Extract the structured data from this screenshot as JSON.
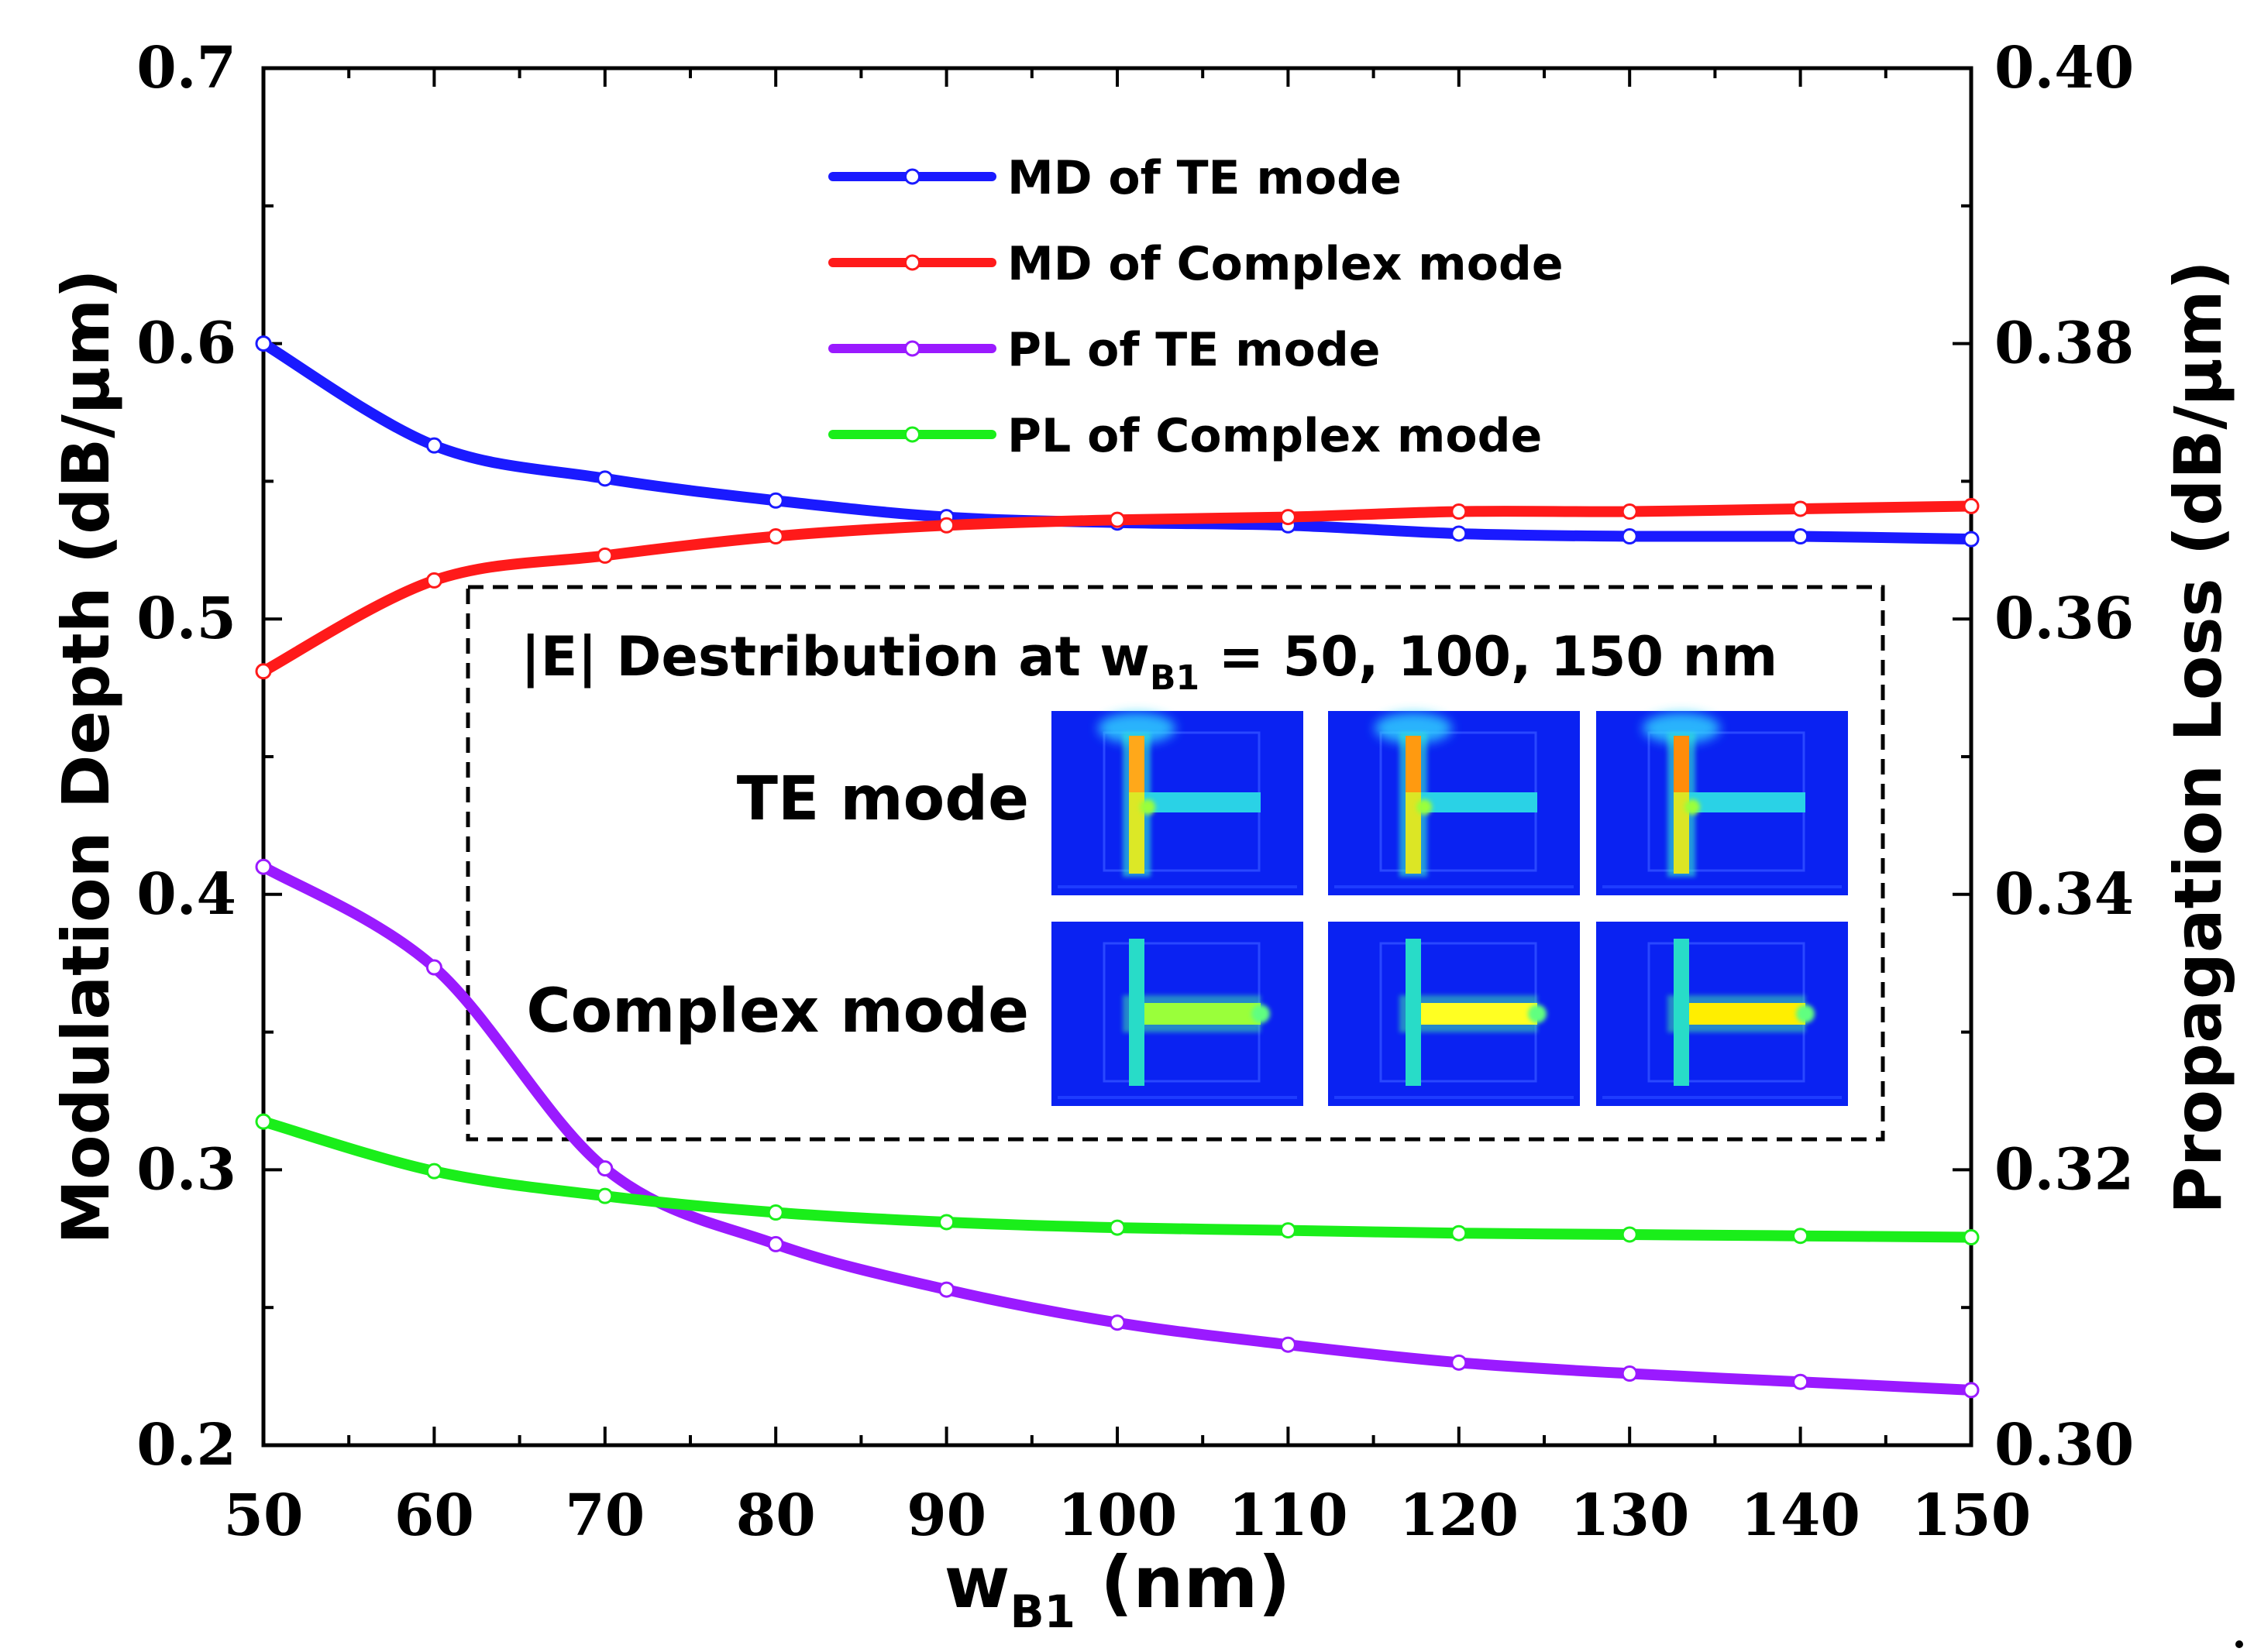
{
  "chart_data": {
    "type": "line",
    "xlabel": "w",
    "xlabel_sub": "B1",
    "xlabel_unit": " (nm)",
    "ylabel_left": "Modulation Depth (dB/μm)",
    "ylabel_right": "Propagation Loss (dB/μm)",
    "xlim": [
      50,
      150
    ],
    "ylim_left": [
      0.2,
      0.7
    ],
    "ylim_right": [
      0.3,
      0.4
    ],
    "x_ticks": [
      "50",
      "60",
      "70",
      "80",
      "90",
      "100",
      "110",
      "120",
      "130",
      "140",
      "150"
    ],
    "y_left_ticks": [
      "0.2",
      "0.3",
      "0.4",
      "0.5",
      "0.6",
      "0.7"
    ],
    "y_right_ticks": [
      "0.30",
      "0.32",
      "0.34",
      "0.36",
      "0.38",
      "0.40"
    ],
    "x": [
      50,
      60,
      70,
      80,
      90,
      100,
      110,
      120,
      130,
      140,
      150
    ],
    "series": [
      {
        "name": "MD of TE mode",
        "axis": "left",
        "color": "#1a1aff",
        "values": [
          0.6,
          0.563,
          0.551,
          0.543,
          0.537,
          0.535,
          0.534,
          0.531,
          0.53,
          0.53,
          0.529
        ]
      },
      {
        "name": "MD of Complex mode",
        "axis": "left",
        "color": "#ff1a1a",
        "values": [
          0.481,
          0.514,
          0.523,
          0.53,
          0.534,
          0.536,
          0.537,
          0.539,
          0.539,
          0.54,
          0.541
        ]
      },
      {
        "name": "PL of TE mode",
        "axis": "right",
        "color": "#9a1aff",
        "values": [
          0.342,
          0.3347,
          0.3201,
          0.3146,
          0.3113,
          0.3089,
          0.3073,
          0.306,
          0.3052,
          0.3046,
          0.304
        ]
      },
      {
        "name": "PL of Complex mode",
        "axis": "right",
        "color": "#1aee1a",
        "values": [
          0.3235,
          0.3199,
          0.3181,
          0.3169,
          0.3162,
          0.3158,
          0.3156,
          0.3154,
          0.3153,
          0.3152,
          0.3151
        ]
      }
    ],
    "inset": {
      "title_prefix": "|E| Destribution at w",
      "title_sub": "B1",
      "title_suffix": " = 50, 100, 150 nm",
      "rows": [
        "TE mode",
        "Complex mode"
      ]
    }
  }
}
